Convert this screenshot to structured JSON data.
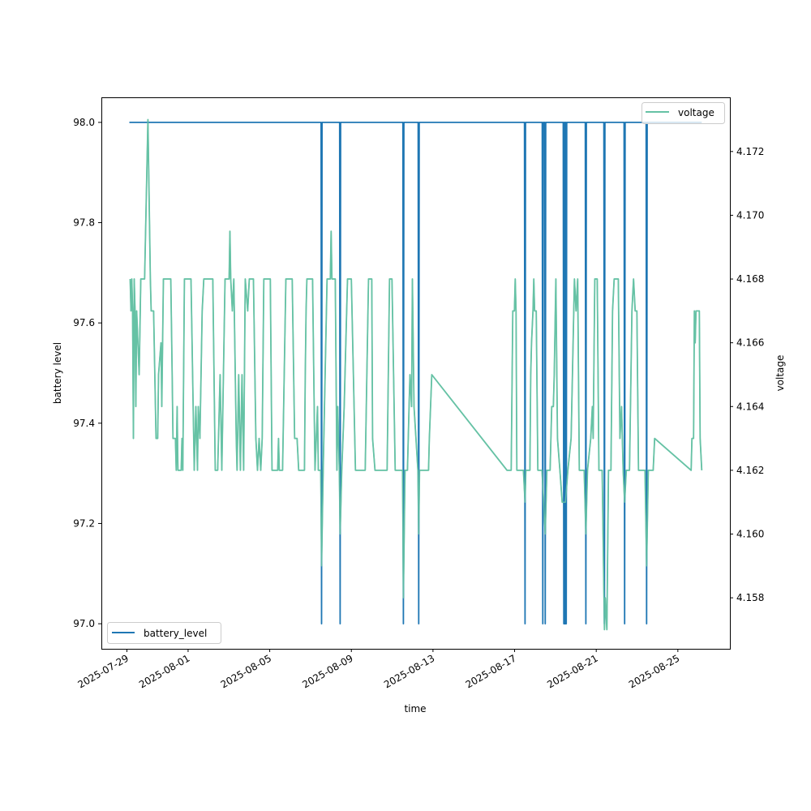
{
  "chart_data": {
    "type": "line",
    "title": "",
    "xlabel": "time",
    "ylabel_left": "battery level",
    "ylabel_right": "voltage",
    "x_unit": "days since 2025-07-29",
    "x_ticks": [
      {
        "d": 0,
        "label": "2025-07-29"
      },
      {
        "d": 3,
        "label": "2025-08-01"
      },
      {
        "d": 7,
        "label": "2025-08-05"
      },
      {
        "d": 11,
        "label": "2025-08-09"
      },
      {
        "d": 15,
        "label": "2025-08-13"
      },
      {
        "d": 19,
        "label": "2025-08-17"
      },
      {
        "d": 23,
        "label": "2025-08-21"
      },
      {
        "d": 27,
        "label": "2025-08-25"
      }
    ],
    "y_left_ticks": [
      {
        "v": 97.0,
        "label": "97.0"
      },
      {
        "v": 97.2,
        "label": "97.2"
      },
      {
        "v": 97.4,
        "label": "97.4"
      },
      {
        "v": 97.6,
        "label": "97.6"
      },
      {
        "v": 97.8,
        "label": "97.8"
      },
      {
        "v": 98.0,
        "label": "98.0"
      }
    ],
    "y_right_ticks": [
      {
        "v": 4.158,
        "label": "4.158"
      },
      {
        "v": 4.16,
        "label": "4.160"
      },
      {
        "v": 4.162,
        "label": "4.162"
      },
      {
        "v": 4.164,
        "label": "4.164"
      },
      {
        "v": 4.166,
        "label": "4.166"
      },
      {
        "v": 4.168,
        "label": "4.168"
      },
      {
        "v": 4.17,
        "label": "4.170"
      },
      {
        "v": 4.172,
        "label": "4.172"
      }
    ],
    "legend_left": {
      "label": "battery_level",
      "placement": "lower-left"
    },
    "legend_right": {
      "label": "voltage",
      "placement": "upper-right"
    },
    "series": [
      {
        "name": "battery_level",
        "axis": "left",
        "color": "#1f77b4",
        "start": 0.12,
        "end": 28.17,
        "base": 98,
        "dips_to_97_at": [
          9.54,
          10.45,
          13.55,
          14.3,
          19.51,
          20.38,
          20.5,
          21.41,
          21.45,
          21.49,
          21.53,
          22.49,
          23.4,
          24.39,
          25.47
        ]
      },
      {
        "name": "voltage",
        "axis": "right",
        "color": "#66c2a5",
        "points": [
          [
            0.16,
            4.168
          ],
          [
            0.2,
            4.167
          ],
          [
            0.24,
            4.168
          ],
          [
            0.28,
            4.167
          ],
          [
            0.32,
            4.163
          ],
          [
            0.36,
            4.168
          ],
          [
            0.4,
            4.167
          ],
          [
            0.44,
            4.164
          ],
          [
            0.48,
            4.167
          ],
          [
            0.6,
            4.165
          ],
          [
            0.68,
            4.168
          ],
          [
            0.87,
            4.168
          ],
          [
            1.03,
            4.173
          ],
          [
            1.15,
            4.168
          ],
          [
            1.19,
            4.167
          ],
          [
            1.31,
            4.167
          ],
          [
            1.43,
            4.163
          ],
          [
            1.51,
            4.163
          ],
          [
            1.55,
            4.165
          ],
          [
            1.67,
            4.166
          ],
          [
            1.71,
            4.164
          ],
          [
            1.79,
            4.168
          ],
          [
            2.15,
            4.168
          ],
          [
            2.22,
            4.165
          ],
          [
            2.26,
            4.163
          ],
          [
            2.38,
            4.163
          ],
          [
            2.42,
            4.162
          ],
          [
            2.46,
            4.164
          ],
          [
            2.5,
            4.162
          ],
          [
            2.66,
            4.162
          ],
          [
            2.7,
            4.163
          ],
          [
            2.74,
            4.162
          ],
          [
            2.82,
            4.168
          ],
          [
            3.14,
            4.168
          ],
          [
            3.3,
            4.162
          ],
          [
            3.38,
            4.164
          ],
          [
            3.46,
            4.162
          ],
          [
            3.5,
            4.164
          ],
          [
            3.58,
            4.163
          ],
          [
            3.69,
            4.167
          ],
          [
            3.77,
            4.168
          ],
          [
            4.21,
            4.168
          ],
          [
            4.33,
            4.162
          ],
          [
            4.45,
            4.162
          ],
          [
            4.57,
            4.165
          ],
          [
            4.65,
            4.162
          ],
          [
            4.81,
            4.168
          ],
          [
            5.01,
            4.168
          ],
          [
            5.05,
            4.1695
          ],
          [
            5.09,
            4.168
          ],
          [
            5.17,
            4.167
          ],
          [
            5.24,
            4.168
          ],
          [
            5.36,
            4.163
          ],
          [
            5.4,
            4.162
          ],
          [
            5.48,
            4.165
          ],
          [
            5.56,
            4.162
          ],
          [
            5.64,
            4.165
          ],
          [
            5.72,
            4.162
          ],
          [
            5.8,
            4.168
          ],
          [
            5.92,
            4.167
          ],
          [
            6.0,
            4.168
          ],
          [
            6.2,
            4.168
          ],
          [
            6.32,
            4.163
          ],
          [
            6.4,
            4.162
          ],
          [
            6.48,
            4.163
          ],
          [
            6.56,
            4.162
          ],
          [
            6.63,
            4.163
          ],
          [
            6.71,
            4.168
          ],
          [
            7.03,
            4.168
          ],
          [
            7.11,
            4.162
          ],
          [
            7.39,
            4.162
          ],
          [
            7.43,
            4.163
          ],
          [
            7.47,
            4.162
          ],
          [
            7.63,
            4.162
          ],
          [
            7.79,
            4.168
          ],
          [
            8.1,
            4.168
          ],
          [
            8.22,
            4.163
          ],
          [
            8.34,
            4.163
          ],
          [
            8.42,
            4.162
          ],
          [
            8.7,
            4.162
          ],
          [
            8.74,
            4.165
          ],
          [
            8.78,
            4.167
          ],
          [
            8.82,
            4.168
          ],
          [
            9.1,
            4.168
          ],
          [
            9.22,
            4.162
          ],
          [
            9.34,
            4.164
          ],
          [
            9.38,
            4.162
          ],
          [
            9.5,
            4.162
          ],
          [
            9.54,
            4.159
          ],
          [
            9.62,
            4.162
          ],
          [
            9.81,
            4.168
          ],
          [
            9.97,
            4.168
          ],
          [
            10.01,
            4.1695
          ],
          [
            10.05,
            4.168
          ],
          [
            10.21,
            4.168
          ],
          [
            10.29,
            4.162
          ],
          [
            10.33,
            4.164
          ],
          [
            10.41,
            4.162
          ],
          [
            10.45,
            4.16
          ],
          [
            10.53,
            4.162
          ],
          [
            10.65,
            4.164
          ],
          [
            10.69,
            4.165
          ],
          [
            10.81,
            4.168
          ],
          [
            11.0,
            4.168
          ],
          [
            11.2,
            4.162
          ],
          [
            11.68,
            4.162
          ],
          [
            11.84,
            4.168
          ],
          [
            12.0,
            4.168
          ],
          [
            12.04,
            4.163
          ],
          [
            12.16,
            4.162
          ],
          [
            12.75,
            4.162
          ],
          [
            12.87,
            4.168
          ],
          [
            12.99,
            4.168
          ],
          [
            13.15,
            4.162
          ],
          [
            13.51,
            4.162
          ],
          [
            13.55,
            4.158
          ],
          [
            13.63,
            4.162
          ],
          [
            13.75,
            4.162
          ],
          [
            13.83,
            4.164
          ],
          [
            13.87,
            4.165
          ],
          [
            13.95,
            4.164
          ],
          [
            13.99,
            4.168
          ],
          [
            14.07,
            4.164
          ],
          [
            14.26,
            4.162
          ],
          [
            14.3,
            4.16
          ],
          [
            14.34,
            4.162
          ],
          [
            14.78,
            4.162
          ],
          [
            14.82,
            4.163
          ],
          [
            14.94,
            4.165
          ],
          [
            18.63,
            4.162
          ],
          [
            18.83,
            4.162
          ],
          [
            18.91,
            4.167
          ],
          [
            18.99,
            4.167
          ],
          [
            19.03,
            4.168
          ],
          [
            19.07,
            4.167
          ],
          [
            19.11,
            4.162
          ],
          [
            19.43,
            4.162
          ],
          [
            19.51,
            4.161
          ],
          [
            19.55,
            4.162
          ],
          [
            19.75,
            4.162
          ],
          [
            19.79,
            4.165
          ],
          [
            19.83,
            4.166
          ],
          [
            19.9,
            4.167
          ],
          [
            19.94,
            4.168
          ],
          [
            19.98,
            4.167
          ],
          [
            20.06,
            4.167
          ],
          [
            20.14,
            4.162
          ],
          [
            20.34,
            4.162
          ],
          [
            20.42,
            4.161
          ],
          [
            20.5,
            4.16
          ],
          [
            20.58,
            4.162
          ],
          [
            20.74,
            4.162
          ],
          [
            20.82,
            4.164
          ],
          [
            20.9,
            4.164
          ],
          [
            20.94,
            4.165
          ],
          [
            21.02,
            4.168
          ],
          [
            21.1,
            4.163
          ],
          [
            21.22,
            4.162
          ],
          [
            21.33,
            4.161
          ],
          [
            21.49,
            4.161
          ],
          [
            21.61,
            4.162
          ],
          [
            21.77,
            4.163
          ],
          [
            21.93,
            4.168
          ],
          [
            22.01,
            4.167
          ],
          [
            22.09,
            4.168
          ],
          [
            22.17,
            4.162
          ],
          [
            22.41,
            4.162
          ],
          [
            22.49,
            4.16
          ],
          [
            22.57,
            4.162
          ],
          [
            22.73,
            4.163
          ],
          [
            22.81,
            4.164
          ],
          [
            22.85,
            4.163
          ],
          [
            22.93,
            4.168
          ],
          [
            23.05,
            4.168
          ],
          [
            23.13,
            4.162
          ],
          [
            23.29,
            4.162
          ],
          [
            23.4,
            4.157
          ],
          [
            23.44,
            4.158
          ],
          [
            23.52,
            4.157
          ],
          [
            23.6,
            4.162
          ],
          [
            23.72,
            4.162
          ],
          [
            23.8,
            4.167
          ],
          [
            23.88,
            4.168
          ],
          [
            24.08,
            4.168
          ],
          [
            24.16,
            4.163
          ],
          [
            24.24,
            4.164
          ],
          [
            24.32,
            4.162
          ],
          [
            24.39,
            4.161
          ],
          [
            24.47,
            4.162
          ],
          [
            24.63,
            4.162
          ],
          [
            24.75,
            4.167
          ],
          [
            24.83,
            4.168
          ],
          [
            24.91,
            4.167
          ],
          [
            24.99,
            4.167
          ],
          [
            25.07,
            4.162
          ],
          [
            25.39,
            4.162
          ],
          [
            25.47,
            4.159
          ],
          [
            25.55,
            4.162
          ],
          [
            25.79,
            4.162
          ],
          [
            25.86,
            4.163
          ],
          [
            27.65,
            4.162
          ],
          [
            27.69,
            4.163
          ],
          [
            27.77,
            4.163
          ],
          [
            27.81,
            4.167
          ],
          [
            27.85,
            4.166
          ],
          [
            27.89,
            4.167
          ],
          [
            28.05,
            4.167
          ],
          [
            28.09,
            4.163
          ],
          [
            28.17,
            4.162
          ]
        ]
      }
    ],
    "xlim": [
      -1.25,
      29.55
    ],
    "ylim_left": [
      96.95,
      98.05
    ],
    "ylim_right": [
      4.1564,
      4.1737
    ],
    "grid": false
  }
}
